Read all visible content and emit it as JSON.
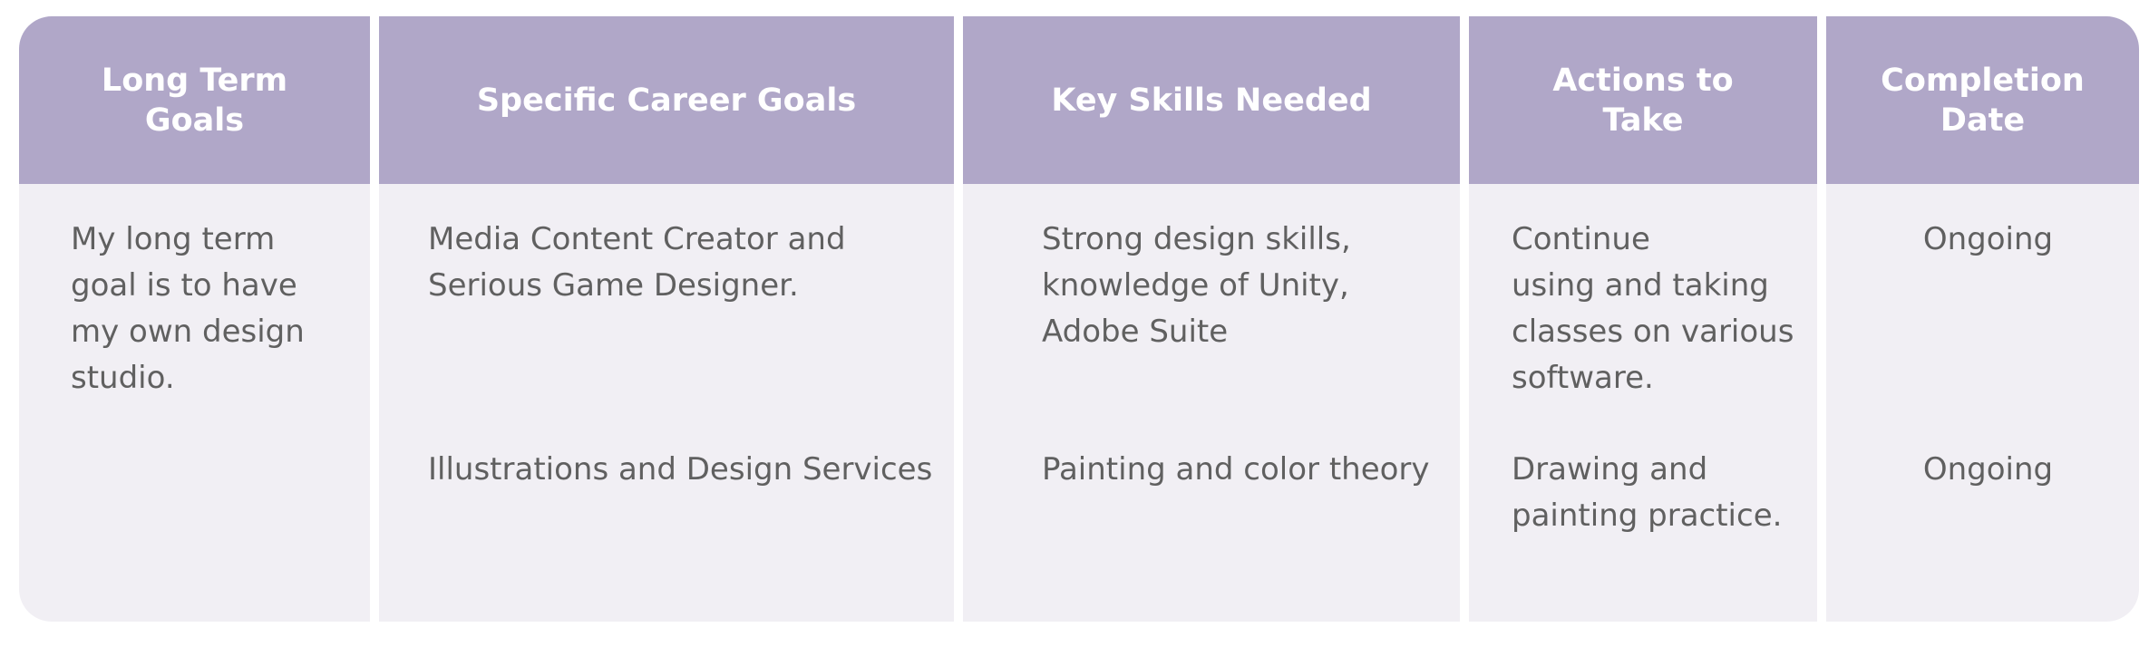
{
  "table": {
    "headers": {
      "long_term_goals": "Long Term\nGoals",
      "specific_career_goals": "Specific Career Goals",
      "key_skills_needed": "Key Skills Needed",
      "actions_to_take": "Actions to\nTake",
      "completion_date": "Completion\nDate"
    },
    "long_term_goal": "My long term\ngoal is to have\nmy own design\nstudio.",
    "rows": [
      {
        "specific_career_goal": "Media Content Creator and\nSerious Game Designer.",
        "key_skills": "Strong design skills,\nknowledge of Unity,\nAdobe Suite",
        "actions": "Continue\nusing and taking\nclasses on various\nsoftware.",
        "completion_date": "Ongoing"
      },
      {
        "specific_career_goal": "Illustrations and Design Services",
        "key_skills": "Painting and color theory",
        "actions": "Drawing and\npainting practice.",
        "completion_date": "Ongoing"
      }
    ]
  },
  "colors": {
    "header_bg": "#b0a7c8",
    "body_bg": "#f1eff4",
    "header_text": "#ffffff",
    "body_text": "#606060"
  }
}
